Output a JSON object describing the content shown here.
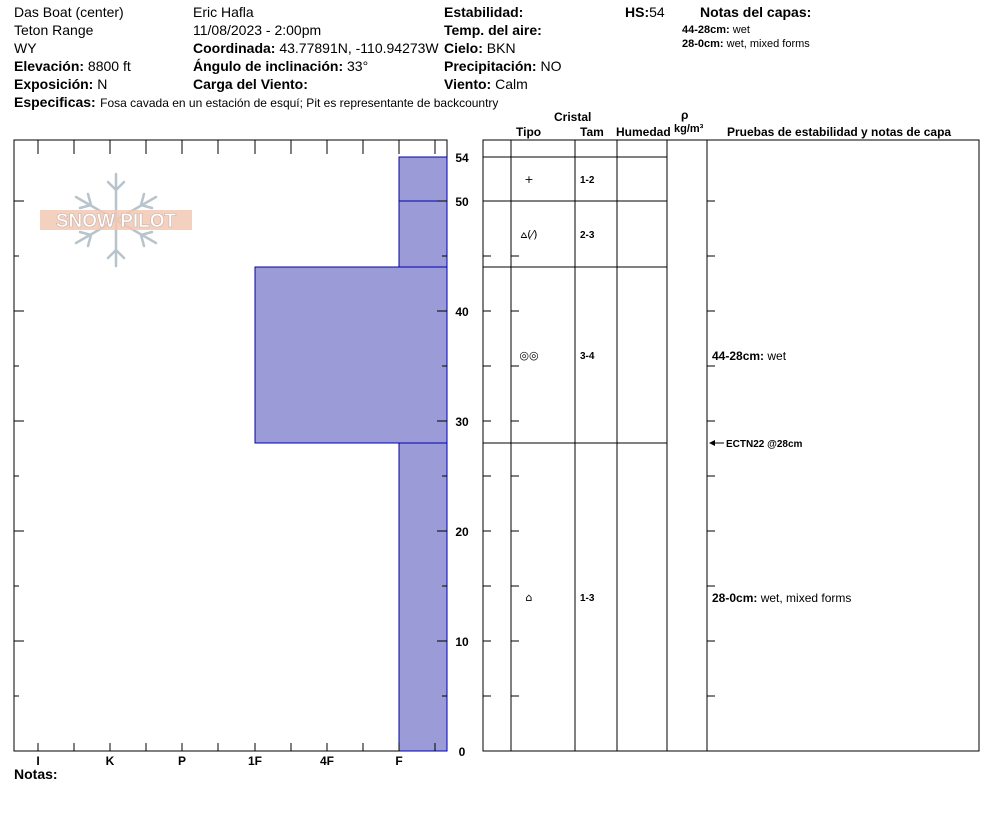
{
  "header": {
    "location": "Das Boat (center)",
    "range": "Teton Range",
    "state": "WY",
    "elevation_label": "Elevación:",
    "elevation": "8800 ft",
    "aspect_label": "Exposición:",
    "aspect": "N",
    "specifics_label": "Especificas:",
    "specifics": "Fosa cavada en un estación de esquí; Pit es representante de backcountry",
    "observer": "Eric Hafla",
    "datetime": "11/08/2023 - 2:00pm",
    "coord_label": "Coordinada:",
    "coord": "43.77891N, -110.94273W",
    "slope_label": "Ángulo de inclinación:",
    "slope": "33°",
    "wind_load_label": "Carga del Viento:",
    "wind_load": "",
    "stability_label": "Estabilidad:",
    "stability": "",
    "air_temp_label": "Temp. del aire:",
    "air_temp": "",
    "sky_label": "Cielo:",
    "sky": "BKN",
    "precip_label": "Precipitación:",
    "precip": "NO",
    "wind_label": "Viento:",
    "wind": "Calm",
    "hs_label": "HS:",
    "hs": "54",
    "layer_notes_label": "Notas del capas:",
    "layer_notes": [
      {
        "range": "44-28cm:",
        "text": "wet"
      },
      {
        "range": "28-0cm:",
        "text": "wet, mixed forms"
      }
    ]
  },
  "logo": {
    "text": "SNOW PILOT"
  },
  "columns": {
    "cristal": "Cristal",
    "tipo": "Tipo",
    "tam": "Tam",
    "humedad": "Humedad",
    "rho": "ρ",
    "density_unit": "kg/m³",
    "tests": "Pruebas de estabilidad y notas de capa"
  },
  "notes_label": "Notas:",
  "chart_data": {
    "type": "bar",
    "orientation": "horizontal",
    "ylabel": "",
    "ylim": [
      0,
      54
    ],
    "yticks": [
      0,
      10,
      20,
      30,
      40,
      50,
      54
    ],
    "hardness_scale": [
      "I",
      "K",
      "P",
      "1F",
      "4F",
      "F"
    ],
    "colors": {
      "fill": "#9b9bd7",
      "stroke": "#0000aa"
    },
    "layers": [
      {
        "top": 54,
        "bottom": 50,
        "hardness": "F",
        "grain_symbol": "+",
        "grain_size": "1-2",
        "note_range": "",
        "note": ""
      },
      {
        "top": 50,
        "bottom": 44,
        "hardness": "F",
        "grain_symbol": "⩟(⁄)",
        "grain_size": "2-3",
        "note_range": "",
        "note": ""
      },
      {
        "top": 44,
        "bottom": 28,
        "hardness": "1F",
        "grain_symbol": "◎◎",
        "grain_size": "3-4",
        "note_range": "44-28cm:",
        "note": "wet"
      },
      {
        "top": 28,
        "bottom": 0,
        "hardness": "F",
        "grain_symbol": "⌂",
        "grain_size": "1-3",
        "note_range": "28-0cm:",
        "note": "wet, mixed forms"
      }
    ],
    "tests": [
      {
        "depth": 28,
        "label": "ECTN22 @28cm"
      }
    ]
  }
}
